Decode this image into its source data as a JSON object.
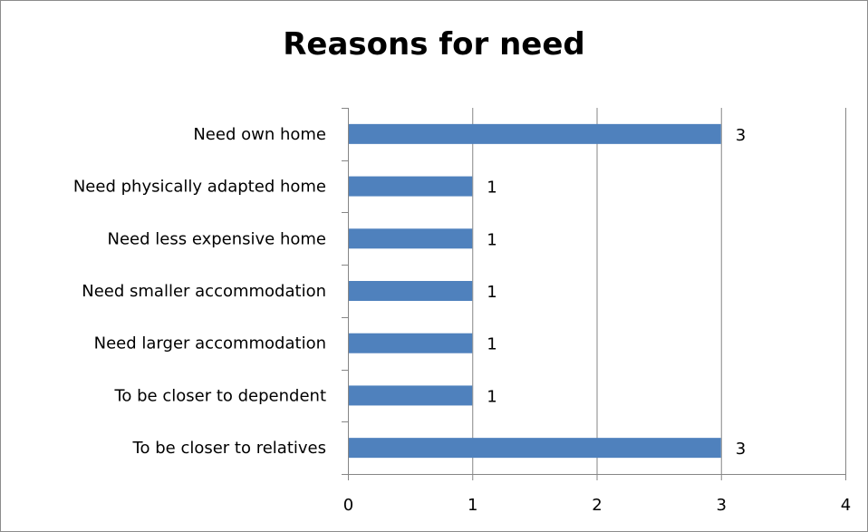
{
  "chart_data": {
    "type": "bar",
    "orientation": "horizontal",
    "title": "Reasons for need",
    "categories": [
      "Need own home",
      "Need physically adapted home",
      "Need less expensive home",
      "Need smaller accommodation",
      "Need larger accommodation",
      "To be closer to dependent",
      "To be closer to relatives"
    ],
    "values": [
      3,
      1,
      1,
      1,
      1,
      1,
      3
    ],
    "data_labels": [
      "3",
      "1",
      "1",
      "1",
      "1",
      "1",
      "3"
    ],
    "xlim": [
      0,
      4
    ],
    "xticks": [
      0,
      1,
      2,
      3,
      4
    ],
    "xtick_labels": [
      "0",
      "1",
      "2",
      "3",
      "4"
    ],
    "xlabel": "",
    "ylabel": "",
    "grid": "vertical",
    "legend": "none",
    "bar_color": "#4f81bd",
    "grid_color": "#868686",
    "axis_color": "#868686"
  }
}
